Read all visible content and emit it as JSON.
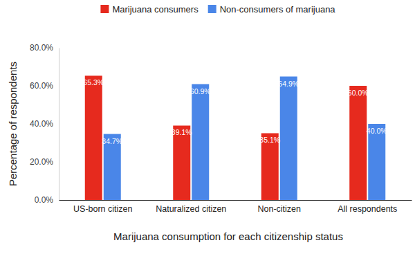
{
  "chart_data": {
    "type": "bar",
    "categories": [
      "US-born citizen",
      "Naturalized citizen",
      "Non-citizen",
      "All respondents"
    ],
    "series": [
      {
        "name": "Marijuana consumers",
        "color": "#e62a1e",
        "values": [
          65.3,
          39.1,
          35.1,
          60.0
        ],
        "value_labels": [
          "65.3%",
          "39.1%",
          "35.1%",
          "60.0%"
        ]
      },
      {
        "name": "Non-consumers of marijuana",
        "color": "#4a86e8",
        "values": [
          34.7,
          60.9,
          64.9,
          40.0
        ],
        "value_labels": [
          "34.7%",
          "60.9%",
          "64.9%",
          "40.0%"
        ]
      }
    ],
    "x_label": "Marijuana consumption for each citizenship status",
    "y_label": "Percentage of respondents",
    "ylim": [
      0,
      80
    ],
    "yticks": [
      {
        "value": 0,
        "label": "0.0%"
      },
      {
        "value": 20,
        "label": "20.0%"
      },
      {
        "value": 40,
        "label": "40.0%"
      },
      {
        "value": 60,
        "label": "60.0%"
      },
      {
        "value": 80,
        "label": "80.0%"
      }
    ],
    "grid": false,
    "legend": "top",
    "data_labels": true
  }
}
